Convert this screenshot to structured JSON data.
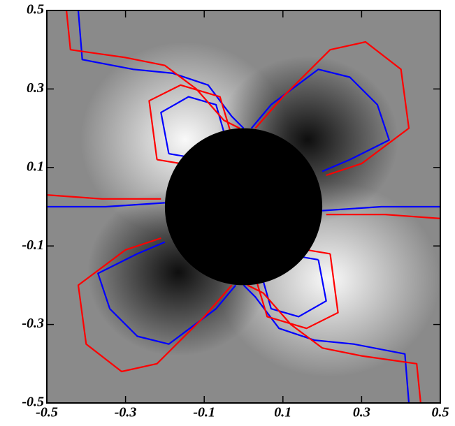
{
  "chart_data": {
    "type": "contour",
    "xlim": [
      -0.5,
      0.5
    ],
    "ylim": [
      -0.5,
      0.5
    ],
    "xticks": [
      -0.5,
      -0.3,
      -0.1,
      0.1,
      0.3,
      0.5
    ],
    "yticks": [
      -0.5,
      -0.3,
      -0.1,
      0.1,
      0.3,
      0.5
    ],
    "mask_radius": 0.2,
    "series": [
      {
        "color": "#0000ff",
        "x": [
          -0.42,
          -0.41,
          -0.28,
          -0.18,
          -0.09,
          -0.03,
          0.0,
          null,
          -0.19,
          -0.21,
          -0.14,
          -0.07,
          -0.05,
          -0.1,
          -0.19,
          null,
          0.42,
          0.41,
          0.28,
          0.18,
          0.09,
          0.03,
          0.0,
          null,
          0.19,
          0.21,
          0.14,
          0.07,
          0.05,
          0.1,
          0.19,
          null,
          0.02,
          0.07,
          0.19,
          0.27,
          0.34,
          0.37,
          0.27,
          0.2,
          null,
          -0.02,
          -0.07,
          -0.19,
          -0.27,
          -0.34,
          -0.37,
          -0.27,
          -0.2,
          null,
          -0.5,
          -0.35,
          -0.2,
          null,
          0.2,
          0.35,
          0.5
        ],
        "y": [
          0.5,
          0.375,
          0.35,
          0.34,
          0.31,
          0.23,
          0.2,
          null,
          0.135,
          0.24,
          0.28,
          0.26,
          0.19,
          0.12,
          0.135,
          null,
          -0.5,
          -0.375,
          -0.35,
          -0.34,
          -0.31,
          -0.23,
          -0.2,
          null,
          -0.135,
          -0.24,
          -0.28,
          -0.26,
          -0.19,
          -0.12,
          -0.135,
          null,
          0.2,
          0.26,
          0.35,
          0.33,
          0.26,
          0.17,
          0.12,
          0.09,
          null,
          -0.2,
          -0.26,
          -0.35,
          -0.33,
          -0.26,
          -0.17,
          -0.12,
          -0.09,
          null,
          0.0,
          0.0,
          0.01,
          null,
          -0.01,
          0.0,
          0.0
        ]
      },
      {
        "color": "#ff0000",
        "x": [
          -0.45,
          -0.44,
          -0.3,
          -0.2,
          -0.12,
          -0.05,
          -0.01,
          null,
          -0.22,
          -0.24,
          -0.16,
          -0.06,
          -0.03,
          -0.1,
          -0.22,
          null,
          0.45,
          0.44,
          0.3,
          0.2,
          0.12,
          0.05,
          0.01,
          null,
          0.22,
          0.24,
          0.16,
          0.06,
          0.03,
          0.1,
          0.22,
          null,
          0.03,
          0.1,
          0.22,
          0.31,
          0.4,
          0.42,
          0.3,
          0.21,
          null,
          -0.03,
          -0.1,
          -0.22,
          -0.31,
          -0.4,
          -0.42,
          -0.3,
          -0.21,
          null,
          -0.5,
          -0.36,
          -0.21,
          null,
          0.21,
          0.36,
          0.5
        ],
        "y": [
          0.5,
          0.4,
          0.38,
          0.36,
          0.3,
          0.22,
          0.2,
          null,
          0.12,
          0.27,
          0.31,
          0.28,
          0.18,
          0.1,
          0.12,
          null,
          -0.5,
          -0.4,
          -0.38,
          -0.36,
          -0.3,
          -0.22,
          -0.2,
          null,
          -0.12,
          -0.27,
          -0.31,
          -0.28,
          -0.18,
          -0.1,
          -0.12,
          null,
          0.2,
          0.28,
          0.4,
          0.42,
          0.35,
          0.2,
          0.11,
          0.08,
          null,
          -0.2,
          -0.28,
          -0.4,
          -0.42,
          -0.35,
          -0.2,
          -0.11,
          -0.08,
          null,
          0.03,
          0.02,
          0.02,
          null,
          -0.02,
          -0.02,
          -0.03
        ]
      }
    ]
  }
}
